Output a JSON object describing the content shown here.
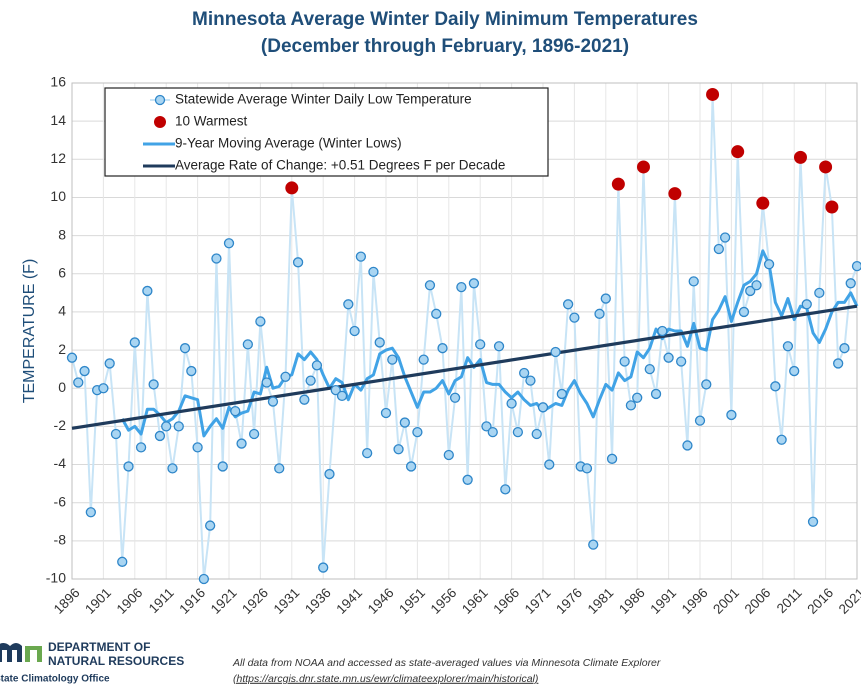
{
  "chart_data": {
    "type": "line",
    "title": "Minnesota Average Winter Daily Minimum Temperatures",
    "subtitle": "(December through February, 1896-2021)",
    "y_label": "TEMPERATURE (F)",
    "x": [
      1896,
      1897,
      1898,
      1899,
      1900,
      1901,
      1902,
      1903,
      1904,
      1905,
      1906,
      1907,
      1908,
      1909,
      1910,
      1911,
      1912,
      1913,
      1914,
      1915,
      1916,
      1917,
      1918,
      1919,
      1920,
      1921,
      1922,
      1923,
      1924,
      1925,
      1926,
      1927,
      1928,
      1929,
      1930,
      1931,
      1932,
      1933,
      1934,
      1935,
      1936,
      1937,
      1938,
      1939,
      1940,
      1941,
      1942,
      1943,
      1944,
      1945,
      1946,
      1947,
      1948,
      1949,
      1950,
      1951,
      1952,
      1953,
      1954,
      1955,
      1956,
      1957,
      1958,
      1959,
      1960,
      1961,
      1962,
      1963,
      1964,
      1965,
      1966,
      1967,
      1968,
      1969,
      1970,
      1971,
      1972,
      1973,
      1974,
      1975,
      1976,
      1977,
      1978,
      1979,
      1980,
      1981,
      1982,
      1983,
      1984,
      1985,
      1986,
      1987,
      1988,
      1989,
      1990,
      1991,
      1992,
      1993,
      1994,
      1995,
      1996,
      1997,
      1998,
      1999,
      2000,
      2001,
      2002,
      2003,
      2004,
      2005,
      2006,
      2007,
      2008,
      2009,
      2010,
      2011,
      2012,
      2013,
      2014,
      2015,
      2016,
      2017,
      2018,
      2019,
      2020,
      2021
    ],
    "series": [
      {
        "name": "Statewide Average Winter Daily Low Temperature",
        "style": "line-markers",
        "color": "#c8e4f6",
        "marker_color": "#a9d5f2",
        "marker_edge": "#2e86c9",
        "values": [
          1.6,
          0.3,
          0.9,
          -6.5,
          -0.1,
          0.0,
          1.3,
          -2.4,
          -9.1,
          -4.1,
          2.4,
          -3.1,
          5.1,
          0.2,
          -2.5,
          -2.0,
          -4.2,
          -2.0,
          2.1,
          0.9,
          -3.1,
          -10.0,
          -7.2,
          6.8,
          -4.1,
          7.6,
          -1.2,
          -2.9,
          2.3,
          -2.4,
          3.5,
          0.3,
          -0.7,
          -4.2,
          0.6,
          10.5,
          6.6,
          -0.6,
          0.4,
          1.2,
          -9.4,
          -4.5,
          -0.1,
          -0.4,
          4.4,
          3.0,
          6.9,
          -3.4,
          6.1,
          2.4,
          -1.3,
          1.5,
          -3.2,
          -1.8,
          -4.1,
          -2.3,
          1.5,
          5.4,
          3.9,
          2.1,
          -3.5,
          -0.5,
          5.3,
          -4.8,
          5.5,
          2.3,
          -2.0,
          -2.3,
          2.2,
          -5.3,
          -0.8,
          -2.3,
          0.8,
          0.4,
          -2.4,
          -1.0,
          -4.0,
          1.9,
          -0.3,
          4.4,
          3.7,
          -4.1,
          -4.2,
          -8.2,
          3.9,
          4.7,
          -3.7,
          10.7,
          1.4,
          -0.9,
          -0.5,
          11.6,
          1.0,
          -0.3,
          3.0,
          1.6,
          10.2,
          1.4,
          -3.0,
          5.6,
          -1.7,
          0.2,
          15.4,
          7.3,
          7.9,
          -1.4,
          12.4,
          4.0,
          5.1,
          5.4,
          9.7,
          6.5,
          0.1,
          -2.7,
          2.2,
          0.9,
          12.1,
          4.4,
          -7.0,
          5.0,
          11.6,
          9.5,
          1.3,
          2.1,
          5.5,
          6.4
        ]
      },
      {
        "name": "10 Warmest",
        "style": "markers",
        "color": "#c00000",
        "x": [
          1931,
          1983,
          1987,
          1992,
          1998,
          2002,
          2006,
          2012,
          2016,
          2017
        ],
        "values": [
          10.5,
          10.7,
          11.6,
          10.2,
          15.4,
          12.4,
          9.7,
          12.1,
          11.6,
          9.5
        ]
      },
      {
        "name": "9-Year Moving Average (Winter Lows)",
        "style": "line",
        "color": "#41a3e6",
        "values": [
          null,
          null,
          null,
          null,
          null,
          null,
          null,
          null,
          -1.6,
          -2.2,
          -2.0,
          -2.4,
          -1.1,
          -1.1,
          -1.4,
          -1.8,
          -1.6,
          -1.2,
          -0.4,
          -0.5,
          -0.6,
          -2.5,
          -2.0,
          -1.6,
          -2.1,
          -1.0,
          -1.5,
          -1.3,
          -1.2,
          -0.2,
          -0.3,
          1.1,
          0.0,
          0.1,
          0.6,
          0.7,
          1.8,
          1.5,
          1.9,
          1.5,
          0.7,
          0.0,
          0.5,
          0.3,
          -0.6,
          0.2,
          -0.1,
          0.5,
          0.7,
          1.8,
          2.0,
          2.1,
          1.6,
          0.6,
          -0.2,
          -1.0,
          -0.2,
          -0.2,
          0.0,
          0.4,
          -0.3,
          0.4,
          0.6,
          1.6,
          1.1,
          1.5,
          0.3,
          0.2,
          0.2,
          -0.2,
          -0.5,
          -0.2,
          -0.6,
          -0.9,
          -0.8,
          -1.2,
          -1.0,
          -0.8,
          -0.9,
          -0.1,
          0.4,
          -0.3,
          -0.8,
          -1.5,
          -0.6,
          0.2,
          -0.1,
          0.8,
          0.4,
          0.6,
          1.9,
          1.6,
          2.1,
          3.1,
          2.6,
          3.1,
          3.0,
          3.0,
          2.2,
          3.4,
          2.1,
          2.0,
          3.6,
          4.1,
          4.8,
          3.5,
          4.5,
          5.4,
          5.6,
          6.0,
          7.2,
          6.5,
          4.5,
          3.8,
          4.7,
          3.6,
          4.3,
          4.2,
          2.9,
          2.4,
          3.1,
          4.0,
          4.5,
          4.5,
          5.0,
          4.3
        ]
      },
      {
        "name": "Average Rate of Change: +0.51 Degrees F per Decade",
        "style": "line",
        "color": "#1f3b5c",
        "x": [
          1896,
          2021
        ],
        "values": [
          -2.1,
          4.3
        ]
      }
    ],
    "xlim": [
      1896,
      2021
    ],
    "xticks": [
      1896,
      1901,
      1906,
      1911,
      1916,
      1921,
      1926,
      1931,
      1936,
      1941,
      1946,
      1951,
      1956,
      1961,
      1966,
      1971,
      1976,
      1981,
      1986,
      1991,
      1996,
      2001,
      2006,
      2011,
      2016,
      2021
    ],
    "ylim": [
      -10,
      16
    ],
    "yticks": [
      -10,
      -8,
      -6,
      -4,
      -2,
      0,
      2,
      4,
      6,
      8,
      10,
      12,
      14,
      16
    ],
    "grid": true,
    "legend": "upper left"
  },
  "footer": {
    "logo_line1": "DEPARTMENT OF",
    "logo_line2": "NATURAL RESOURCES",
    "logo_line3": "State Climatology Office",
    "note": "All data from NOAA and accessed as state-averaged values via Minnesota Climate Explorer",
    "url": "(https://arcgis.dnr.state.mn.us/ewr/climateexplorer/main/historical)"
  }
}
